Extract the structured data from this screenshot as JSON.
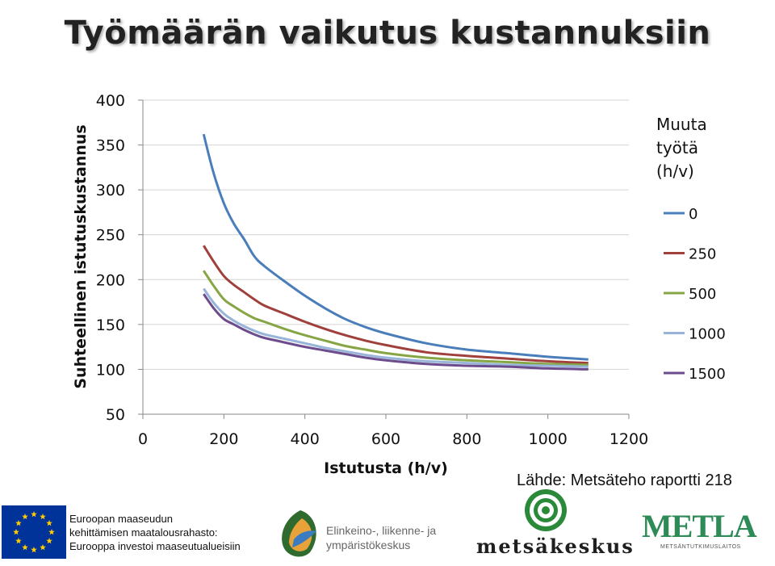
{
  "page": {
    "title": "Työmäärän vaikutus kustannuksiin",
    "source": "Lähde: Metsäteho raportti 218"
  },
  "chart_data": {
    "type": "line",
    "xlabel": "Istutusta (h/v)",
    "ylabel": "Suhteellinen istutuskustannus",
    "xlim": [
      0,
      1200
    ],
    "ylim": [
      50,
      400
    ],
    "xticks": [
      0,
      200,
      400,
      600,
      800,
      1000,
      1200
    ],
    "yticks": [
      50,
      100,
      150,
      200,
      250,
      300,
      350,
      400
    ],
    "grid": "horizontal",
    "legend_position": "right",
    "legend_title": "Muuta työtä (h/v)",
    "legend_title_lines": [
      "Muuta",
      "työtä",
      "(h/v)"
    ],
    "x": [
      150,
      175,
      200,
      225,
      250,
      275,
      300,
      350,
      400,
      450,
      500,
      550,
      600,
      700,
      800,
      900,
      1000,
      1100
    ],
    "series": [
      {
        "name": "0",
        "color": "#4a7ebb",
        "values": [
          362,
          318,
          285,
          262,
          245,
          226,
          215,
          198,
          182,
          168,
          156,
          147,
          140,
          129,
          122,
          118,
          114,
          111
        ]
      },
      {
        "name": "250",
        "color": "#a0403c",
        "values": [
          238,
          220,
          204,
          194,
          186,
          178,
          171,
          162,
          153,
          145,
          138,
          132,
          127,
          119,
          115,
          112,
          109,
          107
        ]
      },
      {
        "name": "500",
        "color": "#86a544",
        "values": [
          210,
          193,
          178,
          170,
          163,
          157,
          153,
          145,
          138,
          132,
          126,
          122,
          118,
          113,
          110,
          108,
          106,
          105
        ]
      },
      {
        "name": "1000",
        "color": "#98b4d8",
        "values": [
          190,
          174,
          162,
          154,
          148,
          143,
          139,
          134,
          129,
          124,
          120,
          116,
          113,
          109,
          107,
          105,
          104,
          103
        ]
      },
      {
        "name": "1500",
        "color": "#6c4c8c",
        "values": [
          184,
          168,
          156,
          150,
          144,
          139,
          135,
          130,
          125,
          121,
          117,
          113,
          110,
          106,
          104,
          103,
          101,
          100
        ]
      }
    ]
  },
  "logos": {
    "eu_text_lines": [
      "Euroopan maaseudun",
      "kehittämisen maatalousrahasto:",
      "Eurooppa investoi maaseutualueisiin"
    ],
    "ely_text_lines": [
      "Elinkeino-, liikenne- ja",
      "ympäristökeskus"
    ],
    "metsakeskus_word": "metsäkeskus",
    "metla_word": "METLA",
    "metla_sub": "METSÄNTUTKIMUSLAITOS",
    "eu_blue": "#003399",
    "eu_star": "#ffcc00",
    "mk_green": "#2a8a3a",
    "metla_green": "#2e8b57"
  }
}
